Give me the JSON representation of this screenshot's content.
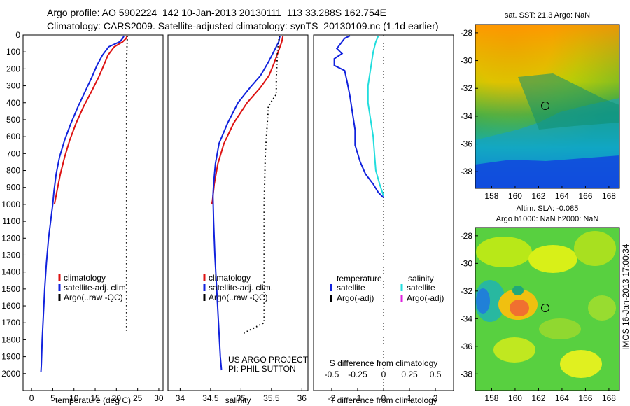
{
  "header": {
    "line1": "Argo profile: AO 5902224_142 10-Jan-2013 20130111_113 33.288S 162.754E",
    "line2": "Climatology: CARS2009. Satellite-adjusted climatology: synTS_20130109.nc (1.1d earlier)"
  },
  "credits": {
    "project": "US ARGO PROJECT",
    "pi": "PI: PHIL SUTTON"
  },
  "stamp": "IMOS 16-Jan-2013 17:00:34",
  "colors": {
    "clim": "#dd1111",
    "sat": "#1122dd",
    "argo": "#000000",
    "sat_sal": "#22dddd",
    "argo_sal": "#dd22dd"
  },
  "chart_data": [
    {
      "type": "line",
      "xlabel": "temperature (deg C)",
      "ylabel": "",
      "xlim": [
        -2,
        31
      ],
      "ylim": [
        2100,
        0
      ],
      "xticks": [
        0,
        5,
        10,
        15,
        20,
        25,
        30
      ],
      "yticks": [
        0,
        100,
        200,
        300,
        400,
        500,
        600,
        700,
        800,
        900,
        1000,
        1100,
        1200,
        1300,
        1400,
        1500,
        1600,
        1700,
        1800,
        1900,
        2000
      ],
      "legend": [
        "climatology",
        "satellite-adj. clim.",
        "Argo(..raw -QC)"
      ],
      "series": [
        {
          "name": "climatology",
          "style": "solid",
          "color": "#dd1111",
          "points": [
            [
              22.5,
              5
            ],
            [
              22.3,
              20
            ],
            [
              21.5,
              40
            ],
            [
              19.5,
              70
            ],
            [
              18.0,
              120
            ],
            [
              17.0,
              180
            ],
            [
              15.8,
              250
            ],
            [
              14.2,
              330
            ],
            [
              12.3,
              420
            ],
            [
              10.5,
              520
            ],
            [
              9.0,
              620
            ],
            [
              7.8,
              720
            ],
            [
              6.8,
              820
            ],
            [
              6.0,
              920
            ],
            [
              5.4,
              1000
            ]
          ]
        },
        {
          "name": "satellite-adj. clim.",
          "style": "solid",
          "color": "#1122dd",
          "points": [
            [
              21.8,
              5
            ],
            [
              21.5,
              20
            ],
            [
              20.8,
              40
            ],
            [
              18.2,
              70
            ],
            [
              16.7,
              120
            ],
            [
              15.4,
              180
            ],
            [
              14.2,
              250
            ],
            [
              12.7,
              330
            ],
            [
              11.0,
              420
            ],
            [
              9.3,
              520
            ],
            [
              7.8,
              620
            ],
            [
              6.6,
              720
            ],
            [
              5.8,
              820
            ],
            [
              5.3,
              920
            ],
            [
              5.0,
              1000
            ],
            [
              4.5,
              1100
            ],
            [
              4.0,
              1200
            ],
            [
              3.5,
              1350
            ],
            [
              3.1,
              1500
            ],
            [
              2.8,
              1650
            ],
            [
              2.5,
              1800
            ],
            [
              2.3,
              1950
            ],
            [
              2.2,
              1990
            ]
          ]
        },
        {
          "name": "Argo(..raw -QC)",
          "style": "dotted",
          "color": "#000000",
          "points": [
            [
              22.6,
              5
            ],
            [
              22.5,
              60
            ],
            [
              22.4,
              150
            ],
            [
              22.4,
              400
            ],
            [
              22.4,
              800
            ],
            [
              22.4,
              1200
            ],
            [
              22.4,
              1500
            ],
            [
              22.4,
              1750
            ]
          ]
        }
      ]
    },
    {
      "type": "line",
      "xlabel": "salinity",
      "ylabel": "",
      "xlim": [
        33.8,
        36.1
      ],
      "ylim": [
        2100,
        0
      ],
      "xticks": [
        34,
        34.5,
        35,
        35.5,
        36
      ],
      "legend": [
        "climatology",
        "satellite-adj. clim.",
        "Argo(..raw -QC)"
      ],
      "series": [
        {
          "name": "climatology",
          "style": "solid",
          "color": "#dd1111",
          "points": [
            [
              35.69,
              5
            ],
            [
              35.67,
              40
            ],
            [
              35.62,
              90
            ],
            [
              35.55,
              160
            ],
            [
              35.46,
              240
            ],
            [
              35.32,
              310
            ],
            [
              35.1,
              400
            ],
            [
              34.88,
              520
            ],
            [
              34.72,
              640
            ],
            [
              34.62,
              760
            ],
            [
              34.56,
              880
            ],
            [
              34.53,
              980
            ],
            [
              34.52,
              1000
            ]
          ]
        },
        {
          "name": "satellite-adj. clim.",
          "style": "solid",
          "color": "#1122dd",
          "points": [
            [
              35.64,
              5
            ],
            [
              35.62,
              40
            ],
            [
              35.55,
              90
            ],
            [
              35.45,
              160
            ],
            [
              35.32,
              240
            ],
            [
              35.15,
              310
            ],
            [
              34.95,
              400
            ],
            [
              34.78,
              520
            ],
            [
              34.64,
              640
            ],
            [
              34.58,
              760
            ],
            [
              34.55,
              880
            ],
            [
              34.54,
              950
            ],
            [
              34.55,
              1100
            ],
            [
              34.57,
              1300
            ],
            [
              34.6,
              1500
            ],
            [
              34.63,
              1700
            ],
            [
              34.66,
              1900
            ],
            [
              34.68,
              1980
            ]
          ]
        },
        {
          "name": "Argo(..raw -QC)",
          "style": "dotted",
          "color": "#000000",
          "points": [
            [
              35.63,
              5
            ],
            [
              35.6,
              100
            ],
            [
              35.58,
              250
            ],
            [
              35.58,
              350
            ],
            [
              35.45,
              420
            ],
            [
              35.4,
              700
            ],
            [
              35.38,
              1000
            ],
            [
              35.38,
              1300
            ],
            [
              35.38,
              1700
            ],
            [
              35.05,
              1760
            ]
          ]
        }
      ]
    },
    {
      "type": "line",
      "xlabel": "T difference from climatology",
      "ylabel": "",
      "annotation": "S difference from climatology",
      "xlim": [
        -2.7,
        2.7
      ],
      "ylim": [
        2100,
        0
      ],
      "xticks": [
        -2,
        -1,
        0,
        1,
        2
      ],
      "x2ticks": [
        "-0.5",
        "-0.25",
        "0",
        "0.25",
        "0.5"
      ],
      "legend_left_title": "temperature",
      "legend_right_title": "salinity",
      "legend_left": [
        "satellite",
        "Argo(-adj)"
      ],
      "legend_right": [
        "satellite",
        "Argo(-adj)"
      ],
      "series": [
        {
          "name": "satellite",
          "style": "solid",
          "color": "#1122dd",
          "points": [
            [
              -1.3,
              5
            ],
            [
              -1.5,
              20
            ],
            [
              -1.6,
              40
            ],
            [
              -1.8,
              80
            ],
            [
              -1.6,
              110
            ],
            [
              -1.9,
              140
            ],
            [
              -1.9,
              180
            ],
            [
              -1.5,
              210
            ],
            [
              -1.4,
              280
            ],
            [
              -1.3,
              360
            ],
            [
              -1.2,
              460
            ],
            [
              -1.1,
              560
            ],
            [
              -1.1,
              650
            ],
            [
              -0.9,
              750
            ],
            [
              -0.7,
              820
            ],
            [
              -0.4,
              880
            ],
            [
              -0.2,
              930
            ],
            [
              0.0,
              960
            ]
          ]
        },
        {
          "name": "satellite",
          "style": "solid",
          "color": "#22dddd",
          "points": [
            [
              -0.2,
              5
            ],
            [
              -0.3,
              40
            ],
            [
              -0.4,
              100
            ],
            [
              -0.5,
              200
            ],
            [
              -0.6,
              300
            ],
            [
              -0.6,
              400
            ],
            [
              -0.5,
              500
            ],
            [
              -0.4,
              600
            ],
            [
              -0.35,
              700
            ],
            [
              -0.3,
              800
            ],
            [
              -0.15,
              880
            ],
            [
              0.0,
              950
            ]
          ]
        }
      ]
    },
    {
      "type": "heatmap",
      "title": "sat. SST: 21.3 Argo: NaN",
      "xticks": [
        158,
        160,
        162,
        164,
        166,
        168
      ],
      "yticks": [
        -28,
        -30,
        -32,
        -34,
        -36,
        -38
      ],
      "marker": {
        "lon": 162.754,
        "lat": -33.288
      }
    },
    {
      "type": "heatmap",
      "title_line1": "Altim. SLA: -0.085",
      "title_line2": "Argo h1000: NaN h2000: NaN",
      "xticks": [
        158,
        160,
        162,
        164,
        166,
        168
      ],
      "yticks": [
        -28,
        -30,
        -32,
        -34,
        -36,
        -38
      ],
      "marker": {
        "lon": 162.754,
        "lat": -33.288
      }
    }
  ]
}
